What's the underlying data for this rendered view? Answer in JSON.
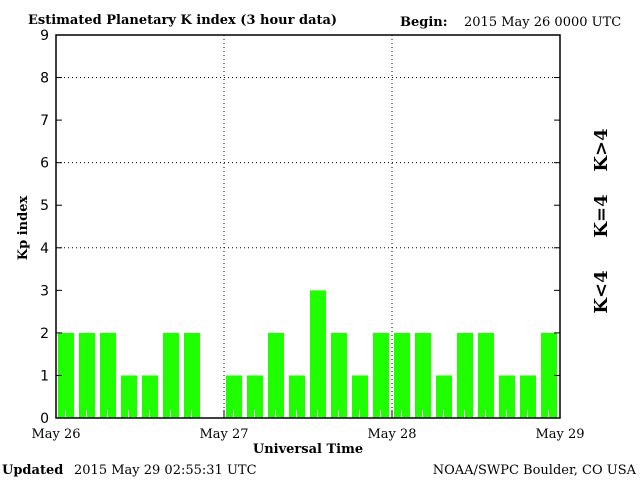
{
  "header": {
    "title": "Estimated Planetary K index (3 hour data)",
    "begin_label": "Begin:",
    "begin_value": "2015 May 26 0000 UTC"
  },
  "footer": {
    "updated_label": "Updated",
    "updated_value": "2015 May 29 02:55:31 UTC",
    "credit": "NOAA/SWPC Boulder, CO USA"
  },
  "legend": {
    "high": {
      "label": "K>4",
      "color": "#ff2000"
    },
    "equal": {
      "label": "K=4",
      "color": "#ffd800"
    },
    "low": {
      "label": "K<4",
      "color": "#20ff00"
    }
  },
  "chart_data": {
    "type": "bar",
    "title": "Estimated Planetary K index (3 hour data)",
    "xlabel": "Universal Time",
    "ylabel": "Kp index",
    "ylim": [
      0,
      9
    ],
    "yticks": [
      "0",
      "1",
      "2",
      "3",
      "4",
      "5",
      "6",
      "7",
      "8",
      "9"
    ],
    "xticks": [
      "May 26",
      "May 27",
      "May 28",
      "May 29"
    ],
    "grid": "dotted at Kp 4, 6, 8 and at day boundaries",
    "interval": "3 hours",
    "values": [
      2,
      2,
      2,
      1,
      1,
      2,
      2,
      null,
      1,
      1,
      2,
      1,
      3,
      2,
      1,
      2,
      2,
      2,
      1,
      2,
      2,
      1,
      1,
      2
    ],
    "bar_color": "#20ff00"
  }
}
